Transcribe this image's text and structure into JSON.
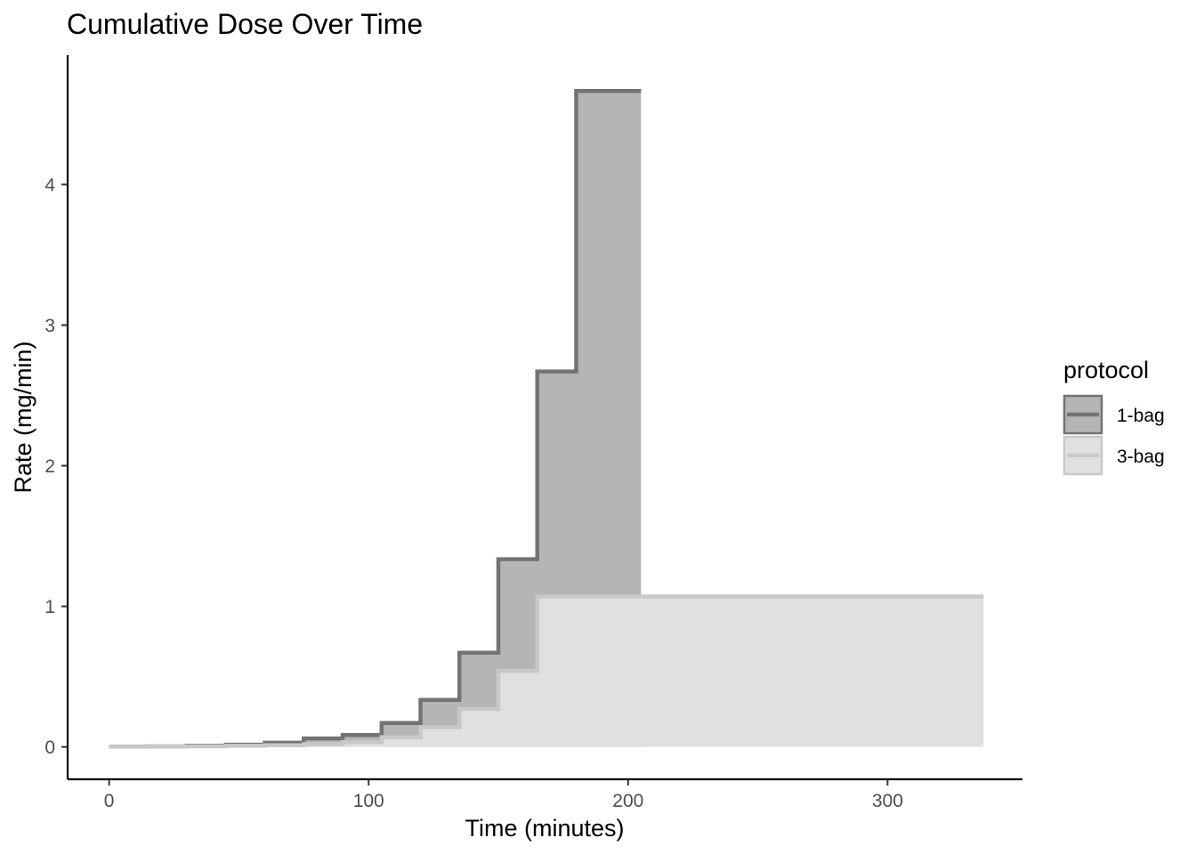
{
  "chart_data": {
    "type": "area",
    "title": "Cumulative Dose Over Time",
    "xlabel": "Time (minutes)",
    "ylabel": "Rate (mg/min)",
    "xlim": [
      -16,
      352
    ],
    "ylim": [
      -0.23,
      4.92
    ],
    "xticks": [
      0,
      100,
      200,
      300
    ],
    "yticks": [
      0,
      1,
      2,
      3,
      4
    ],
    "grid": false,
    "legend": {
      "title": "protocol",
      "position": "right"
    },
    "series": [
      {
        "name": "1-bag",
        "line_color": "#737373",
        "fill_color": "#b5b5b5",
        "step": "after",
        "x": [
          0,
          15,
          30,
          45,
          60,
          75,
          90,
          105,
          120,
          135,
          150,
          165,
          180,
          205
        ],
        "y": [
          0.0025,
          0.0045,
          0.0085,
          0.016,
          0.03,
          0.06,
          0.085,
          0.17,
          0.335,
          0.67,
          1.335,
          2.67,
          4.665,
          4.665
        ]
      },
      {
        "name": "3-bag",
        "line_color": "#c8c8c8",
        "fill_color": "#e0e0e0",
        "step": "after",
        "x": [
          0,
          15,
          30,
          45,
          60,
          75,
          90,
          105,
          120,
          135,
          150,
          165,
          337
        ],
        "y": [
          0.0015,
          0.003,
          0.005,
          0.008,
          0.012,
          0.02,
          0.035,
          0.07,
          0.14,
          0.27,
          0.54,
          1.07,
          1.07
        ]
      }
    ]
  }
}
